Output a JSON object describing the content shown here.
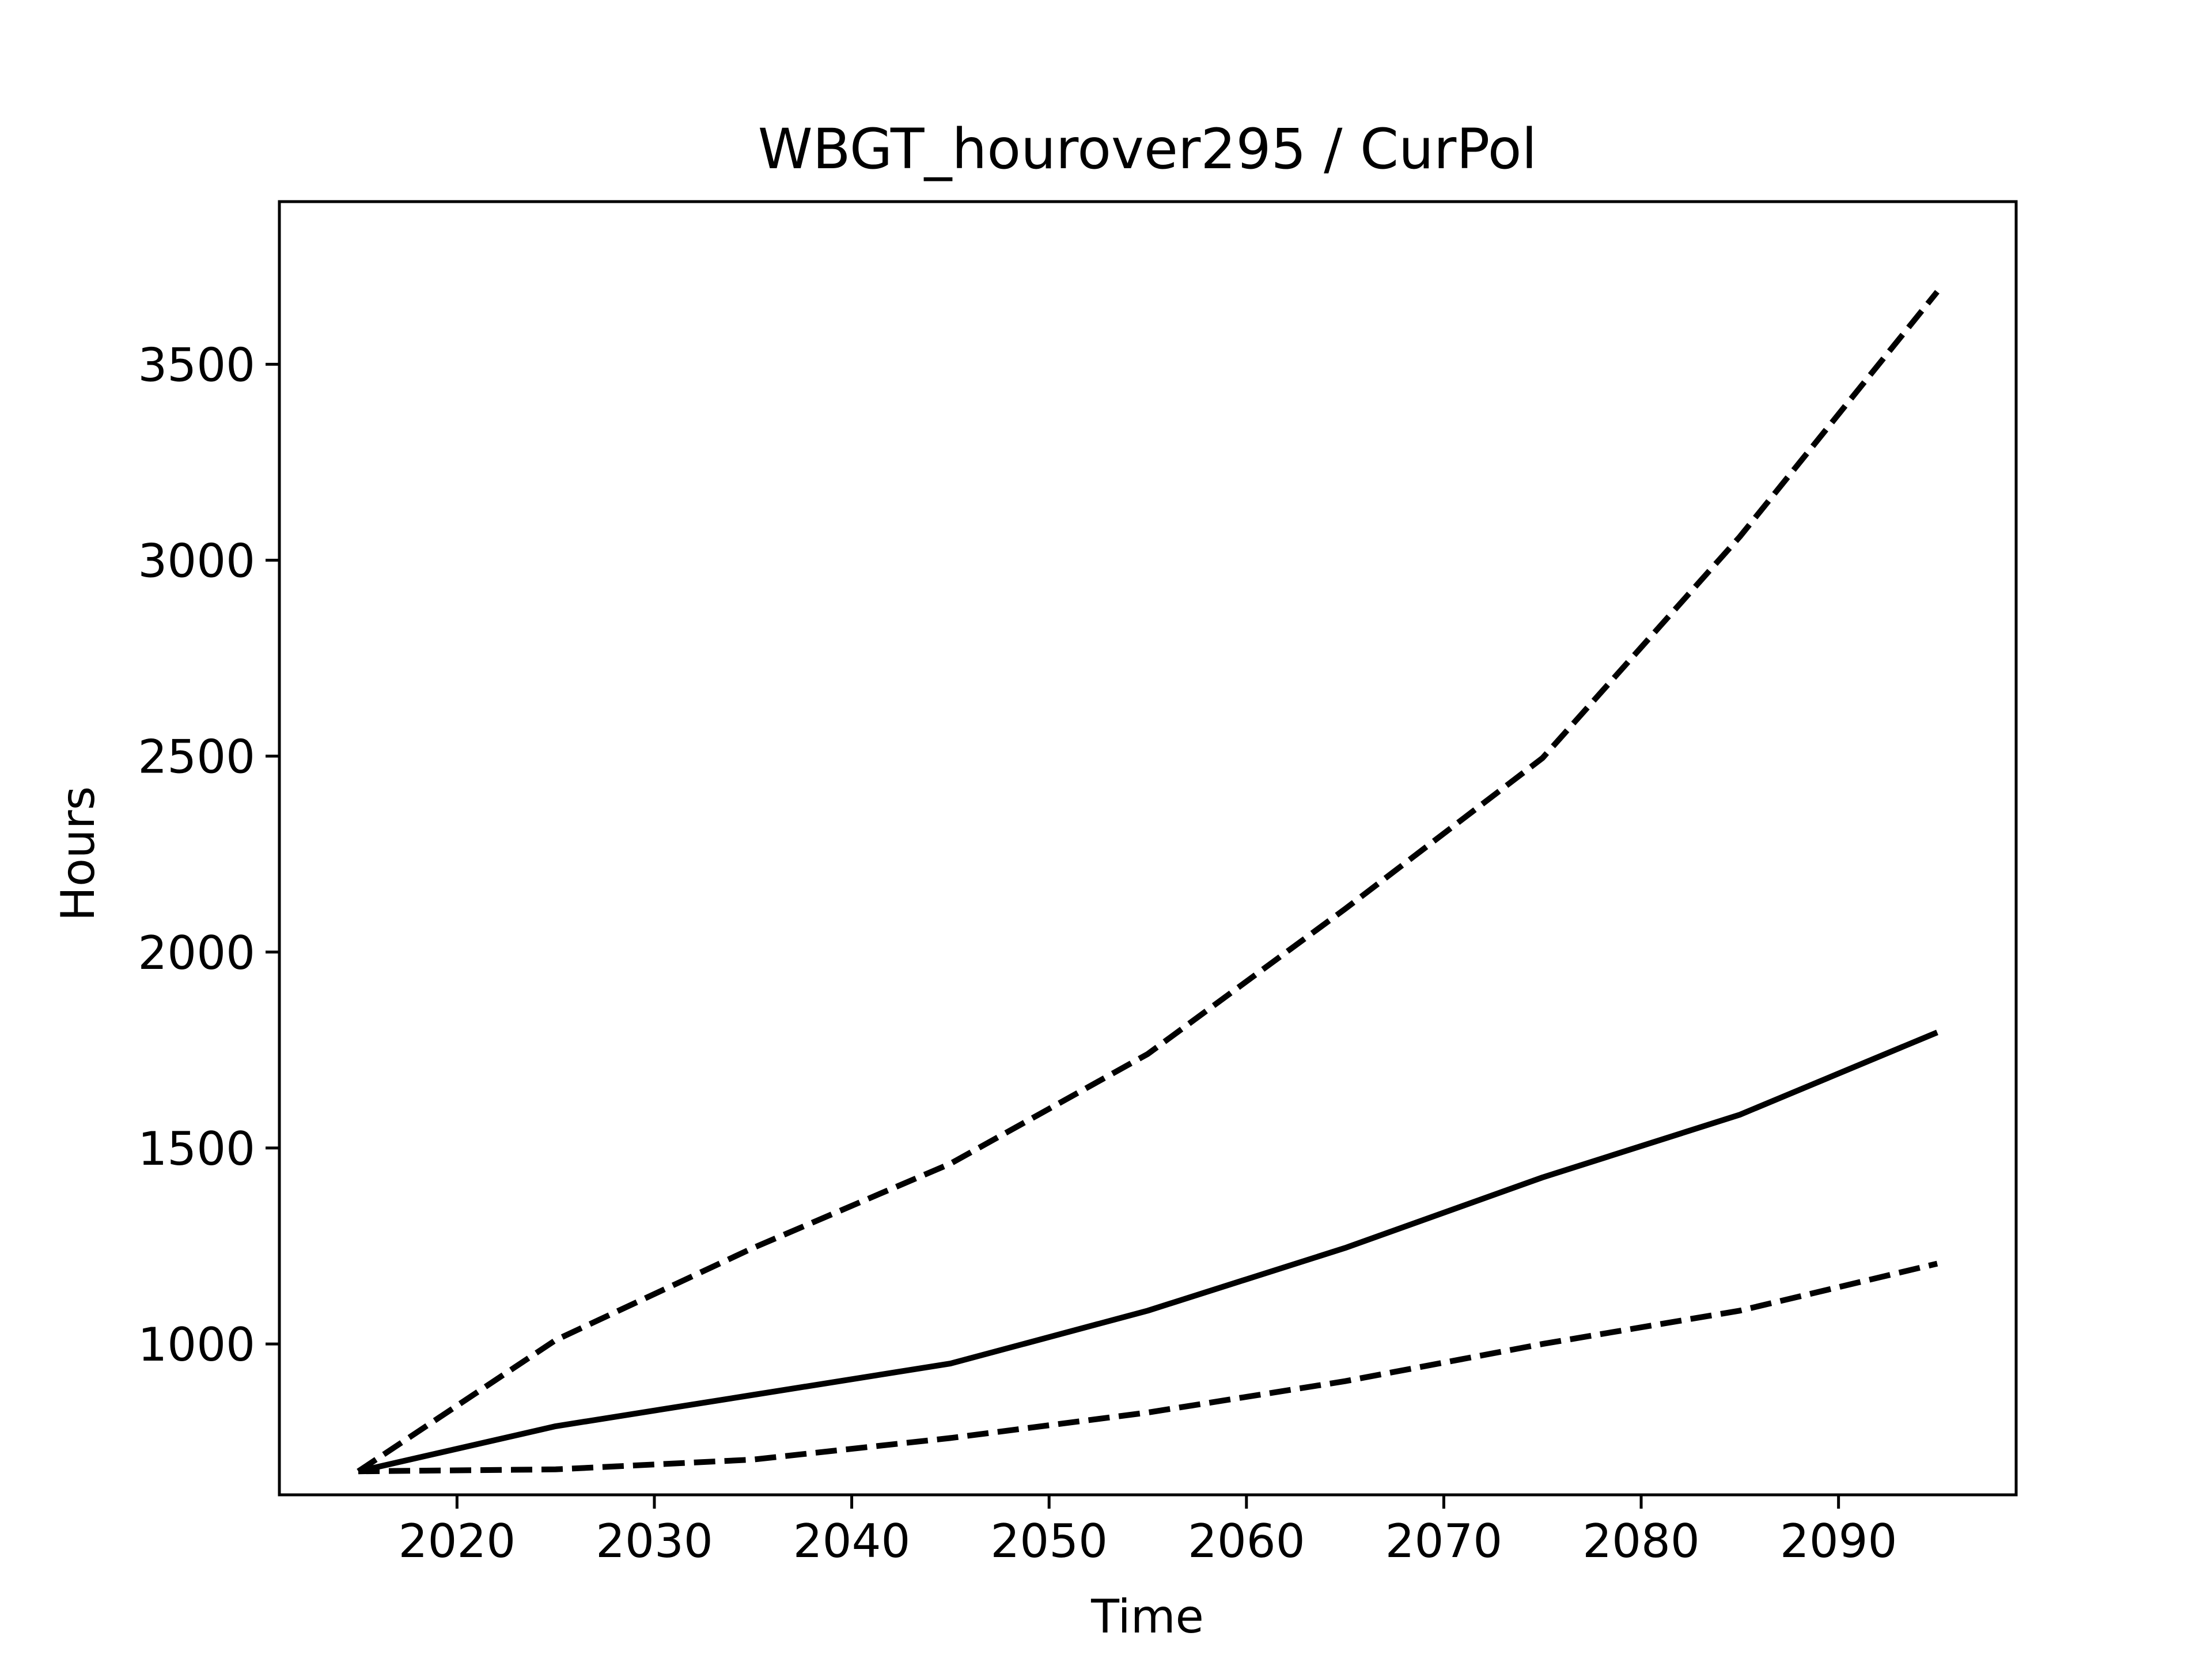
{
  "chart_data": {
    "type": "line",
    "title": "WBGT_hourover295 / CurPol",
    "xlabel": "Time",
    "ylabel": "Hours",
    "xlim": [
      2011,
      2099
    ],
    "ylim": [
      615,
      3915
    ],
    "xticks": [
      2020,
      2030,
      2040,
      2050,
      2060,
      2070,
      2080,
      2090
    ],
    "yticks": [
      1000,
      1500,
      2000,
      2500,
      3000,
      3500
    ],
    "grid": false,
    "legend": "none",
    "colors": {
      "line": "#000000",
      "axes": "#000000",
      "background": "#ffffff"
    },
    "x": [
      2015,
      2025,
      2035,
      2045,
      2055,
      2065,
      2075,
      2085,
      2095
    ],
    "series": [
      {
        "style": "dashed",
        "values": [
          675,
          1010,
          1245,
          1460,
          1740,
          2110,
          2495,
          3060,
          3685
        ]
      },
      {
        "style": "solid",
        "values": [
          675,
          790,
          870,
          950,
          1085,
          1245,
          1425,
          1585,
          1795
        ]
      },
      {
        "style": "dashed",
        "values": [
          675,
          680,
          705,
          760,
          825,
          905,
          1000,
          1085,
          1205
        ]
      }
    ]
  }
}
